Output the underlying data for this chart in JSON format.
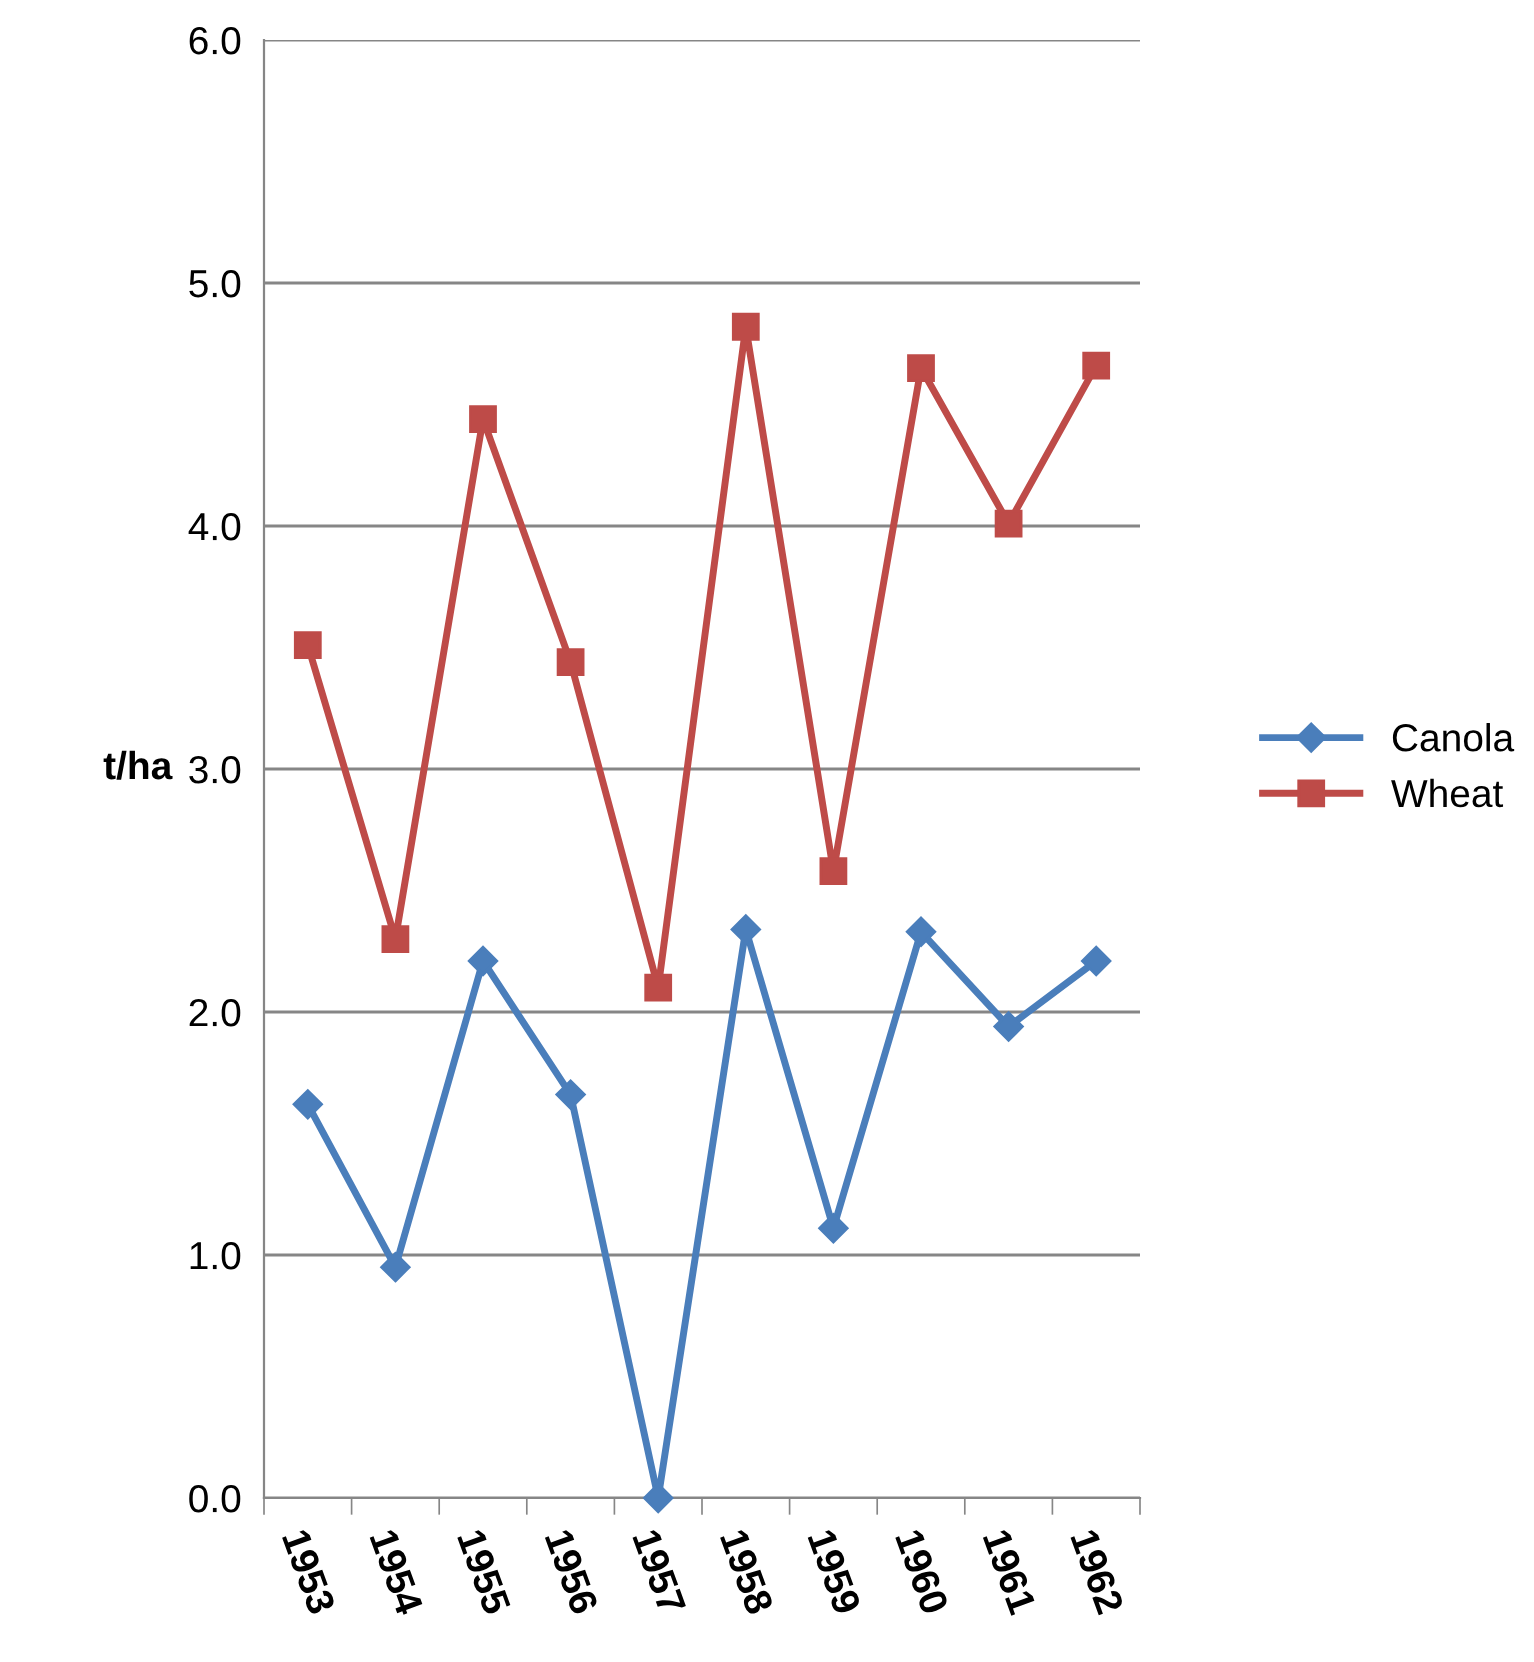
{
  "chart_data": {
    "type": "line",
    "ylabel": "t/ha",
    "categories": [
      "1953",
      "1954",
      "1955",
      "1956",
      "1957",
      "1958",
      "1959",
      "1960",
      "1961",
      "1962"
    ],
    "series": [
      {
        "name": "Canola",
        "color": "#4a7ebb",
        "marker": "diamond",
        "values": [
          1.62,
          0.95,
          2.21,
          1.66,
          0.0,
          2.34,
          1.11,
          2.33,
          1.94,
          2.21
        ]
      },
      {
        "name": "Wheat",
        "color": "#be4b48",
        "marker": "square",
        "values": [
          3.51,
          2.3,
          4.44,
          3.44,
          2.1,
          4.82,
          2.58,
          4.65,
          4.01,
          4.66
        ]
      }
    ],
    "ylim": [
      0,
      6
    ],
    "yticks": [
      {
        "value": 0,
        "label": "0.0"
      },
      {
        "value": 1,
        "label": "1.0"
      },
      {
        "value": 2,
        "label": "2.0"
      },
      {
        "value": 3,
        "label": "3.0"
      },
      {
        "value": 4,
        "label": "4.0"
      },
      {
        "value": 5,
        "label": "5.0"
      },
      {
        "value": 6,
        "label": "6.0"
      }
    ],
    "grid": "y",
    "legend": "right",
    "line_style": "solid"
  }
}
